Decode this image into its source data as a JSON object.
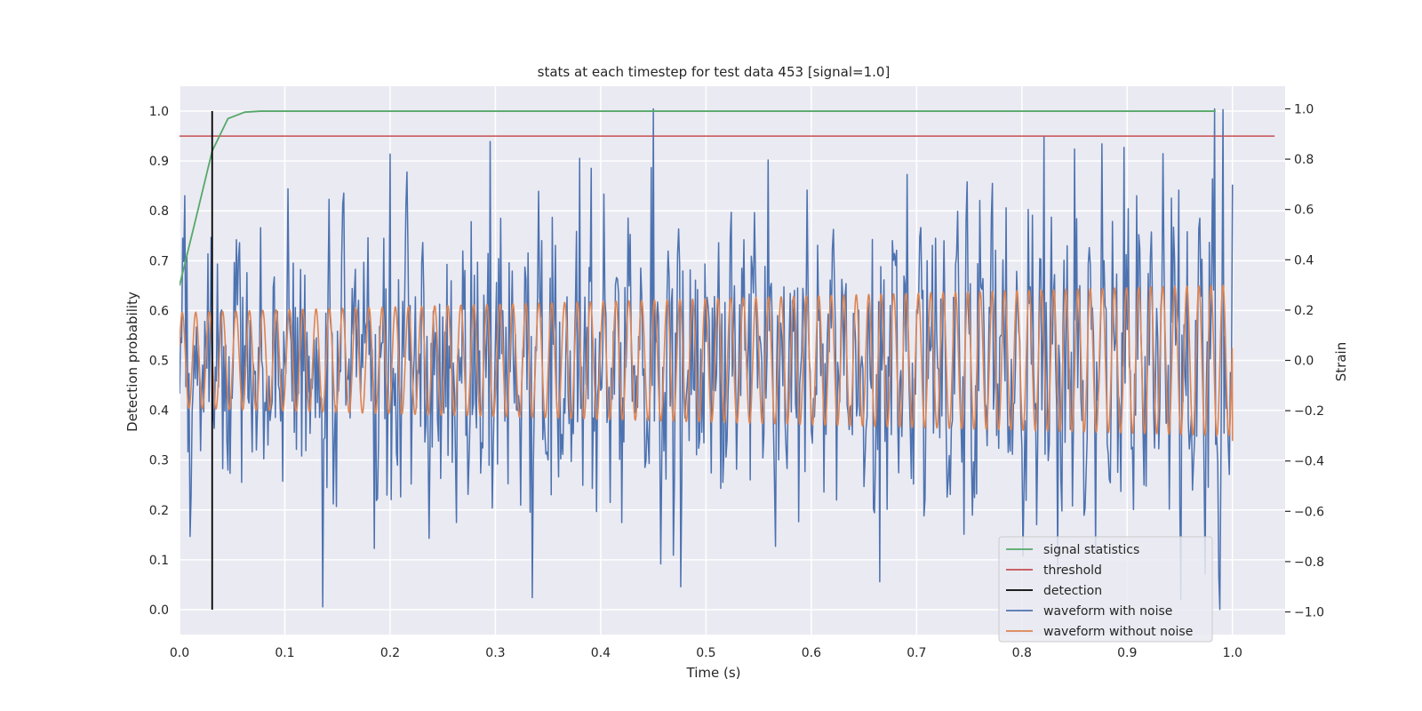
{
  "chart_data": {
    "type": "line",
    "title": "stats at each timestep for test data 453 [signal=1.0]",
    "xlabel": "Time (s)",
    "ylabel_left": "Detection probability",
    "ylabel_right": "Strain",
    "xlim": [
      0.0,
      1.05
    ],
    "ylim_left": [
      -0.05,
      1.05
    ],
    "ylim_right": [
      -1.09,
      1.09
    ],
    "x_ticks": [
      0.0,
      0.1,
      0.2,
      0.3,
      0.4,
      0.5,
      0.6,
      0.7,
      0.8,
      0.9,
      1.0
    ],
    "x_tick_labels": [
      "0.0",
      "0.1",
      "0.2",
      "0.3",
      "0.4",
      "0.5",
      "0.6",
      "0.7",
      "0.8",
      "0.9",
      "1.0"
    ],
    "y_left_ticks": [
      0.0,
      0.1,
      0.2,
      0.3,
      0.4,
      0.5,
      0.6,
      0.7,
      0.8,
      0.9,
      1.0
    ],
    "y_left_tick_labels": [
      "0.0",
      "0.1",
      "0.2",
      "0.3",
      "0.4",
      "0.5",
      "0.6",
      "0.7",
      "0.8",
      "0.9",
      "1.0"
    ],
    "y_right_ticks": [
      -1.0,
      -0.8,
      -0.6,
      -0.4,
      -0.2,
      0.0,
      0.2,
      0.4,
      0.6,
      0.8,
      1.0
    ],
    "y_right_tick_labels": [
      "−1.0",
      "−0.8",
      "−0.6",
      "−0.4",
      "−0.2",
      "0.0",
      "0.2",
      "0.4",
      "0.6",
      "0.8",
      "1.0"
    ],
    "grid": true,
    "legend_position": "bottom-right",
    "legend": [
      "signal statistics",
      "threshold",
      "detection",
      "waveform with noise",
      "waveform without noise"
    ],
    "colors": {
      "plot_background": "#eaeaf2",
      "grid": "#ffffff",
      "signal_statistics": "#55a868",
      "threshold": "#c44e52",
      "detection": "#000000",
      "waveform_noise": "#4c72b0",
      "waveform_clean": "#dd8452"
    },
    "signal_statistics": {
      "axis": "left",
      "x": [
        0.0,
        0.015,
        0.031,
        0.046,
        0.062,
        0.077,
        0.092,
        0.2,
        0.4,
        0.6,
        0.8,
        0.984
      ],
      "y": [
        0.65,
        0.78,
        0.92,
        0.985,
        0.998,
        1.0,
        1.0,
        1.0,
        1.0,
        1.0,
        1.0,
        1.0
      ]
    },
    "threshold": {
      "axis": "left",
      "value": 0.95,
      "x_range": [
        0.0,
        1.04
      ]
    },
    "detection": {
      "axis": "left",
      "x": 0.031,
      "y_range": [
        0.0,
        1.0
      ]
    },
    "waveform_without_noise": {
      "axis": "right",
      "x_range": [
        0.0,
        1.0
      ],
      "amplitude_start": 0.19,
      "amplitude_end": 0.3,
      "cycles": 83,
      "end_value": -0.32
    },
    "waveform_with_noise": {
      "axis": "right",
      "x_range": [
        0.0,
        1.0
      ],
      "samples": 1000,
      "noise_spread": 0.27,
      "min": -0.99,
      "max": 1.0,
      "peaks": [
        {
          "x": 0.2,
          "y": 0.82
        },
        {
          "x": 0.295,
          "y": 0.87
        },
        {
          "x": 0.45,
          "y": 1.0
        },
        {
          "x": 0.85,
          "y": 0.84
        },
        {
          "x": 0.983,
          "y": 1.0
        }
      ],
      "troughs": [
        {
          "x": 0.136,
          "y": -0.98
        },
        {
          "x": 0.476,
          "y": -0.9
        },
        {
          "x": 0.665,
          "y": -0.88
        },
        {
          "x": 0.988,
          "y": -0.99
        }
      ]
    }
  }
}
